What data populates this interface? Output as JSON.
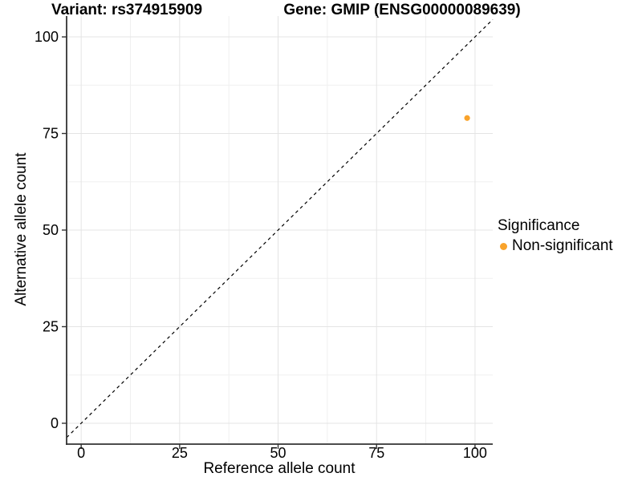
{
  "chart_data": {
    "type": "scatter",
    "title_left": "Variant: rs374915909",
    "title_right": "Gene: GMIP (ENSG00000089639)",
    "xlabel": "Reference allele count",
    "ylabel": "Alternative allele count",
    "xticks": [
      0,
      25,
      50,
      75,
      100
    ],
    "yticks": [
      0,
      25,
      50,
      75,
      100
    ],
    "xlim": [
      -3.7,
      104.5
    ],
    "ylim": [
      -5.4,
      105.4
    ],
    "grid": "major+minor",
    "identity_line": {
      "slope": 1,
      "intercept": 0,
      "style": "dashed",
      "color": "#000000"
    },
    "series": [
      {
        "name": "Non-significant",
        "color": "#F9A32B",
        "points": [
          {
            "x": 98,
            "y": 79
          }
        ]
      }
    ],
    "legend": {
      "title": "Significance",
      "position": "right",
      "items": [
        {
          "label": "Non-significant",
          "color": "#F9A32B"
        }
      ]
    }
  },
  "colors": {
    "background": "#FFFFFF",
    "grid_major": "#E4E4E4",
    "grid_minor": "#F0F0F0",
    "axis_line": "#333333",
    "tick_mark": "#333333",
    "tick_label": "#000000",
    "text": "#000000"
  }
}
